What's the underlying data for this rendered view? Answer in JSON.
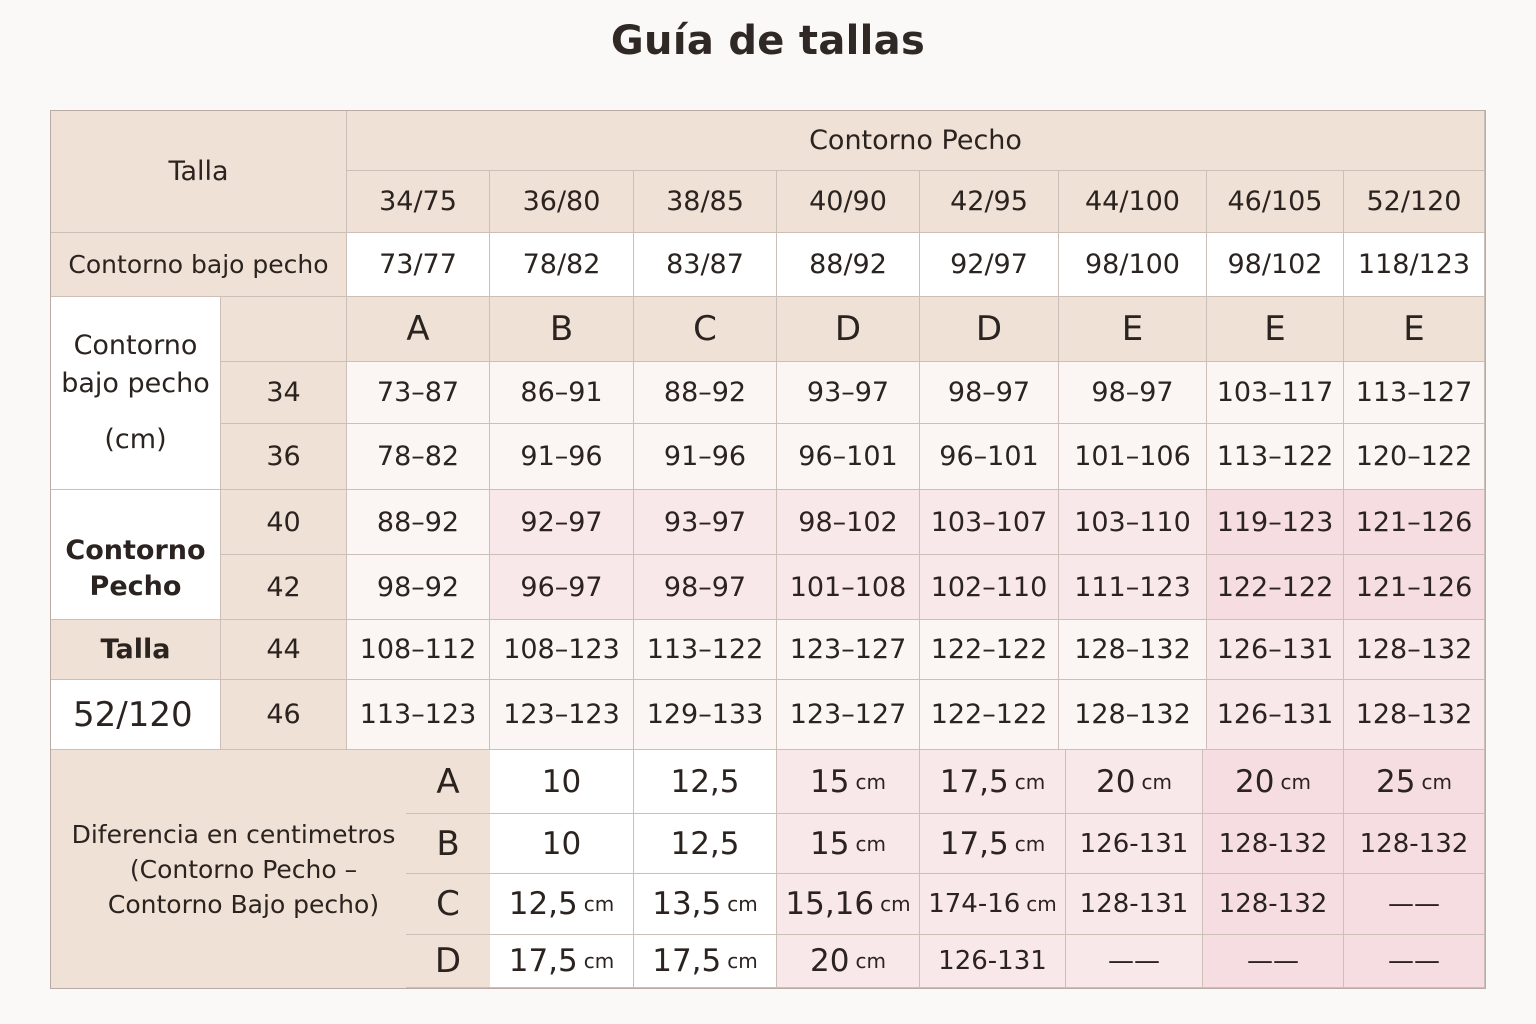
{
  "title": "Guía de tallas",
  "header": {
    "talla": "Talla",
    "contorno_pecho": "Contorno Pecho",
    "sizes": [
      "34/75",
      "36/80",
      "38/85",
      "40/90",
      "42/95",
      "44/100",
      "46/105",
      "52/120"
    ]
  },
  "bajo_pecho_row": {
    "label": "Contorno bajo pecho",
    "values": [
      "73/77",
      "78/82",
      "83/87",
      "88/92",
      "92/97",
      "98/100",
      "98/102",
      "118/123"
    ]
  },
  "cups": [
    "A",
    "B",
    "C",
    "D",
    "D",
    "E",
    "E",
    "E"
  ],
  "side_labels": {
    "group1_line1": "Contorno",
    "group1_line2": "bajo pecho",
    "group1_line3": "(cm)",
    "group2_line1": "Contorno",
    "group2_line2": "Pecho",
    "talla": "Talla",
    "size_52": "52/120"
  },
  "rows": [
    {
      "band": "34",
      "values": [
        "73–87",
        "86–91",
        "88–92",
        "93–97",
        "98–97",
        "98–97",
        "103–117",
        "113–127"
      ]
    },
    {
      "band": "36",
      "values": [
        "78–82",
        "91–96",
        "91–96",
        "96–101",
        "96–101",
        "101–106",
        "113–122",
        "120–122"
      ]
    },
    {
      "band": "40",
      "values": [
        "88–92",
        "92–97",
        "93–97",
        "98–102",
        "103–107",
        "103–110",
        "119–123",
        "121–126"
      ]
    },
    {
      "band": "42",
      "values": [
        "98–92",
        "96–97",
        "98–97",
        "101–108",
        "102–110",
        "111–123",
        "122–122",
        "121–126"
      ]
    },
    {
      "band": "44",
      "values": [
        "108–112",
        "108–123",
        "113–122",
        "123–127",
        "122–122",
        "128–132",
        "126–131",
        "128–132"
      ]
    },
    {
      "band": "46",
      "values": [
        "113–123",
        "123–123",
        "129–133",
        "123–127",
        "122–122",
        "128–132",
        "126–131",
        "128–132"
      ]
    }
  ],
  "diferencia": {
    "label_line1": "Diferencia en centimetros",
    "label_line2": "(Contorno Pecho –",
    "label_line3": "Contorno Bajo pecho)",
    "rows": [
      {
        "letter": "A",
        "cells": [
          {
            "v": "10",
            "u": ""
          },
          {
            "v": "12,5",
            "u": ""
          },
          {
            "v": "15",
            "u": "cm"
          },
          {
            "v": "17,5",
            "u": "cm"
          },
          {
            "v": "20",
            "u": "cm"
          },
          {
            "v": "20",
            "u": "cm"
          },
          {
            "v": "25",
            "u": "cm"
          }
        ]
      },
      {
        "letter": "B",
        "cells": [
          {
            "v": "10",
            "u": ""
          },
          {
            "v": "12,5",
            "u": ""
          },
          {
            "v": "15",
            "u": "cm"
          },
          {
            "v": "17,5",
            "u": "cm"
          },
          {
            "v": "126-131",
            "u": ""
          },
          {
            "v": "128-132",
            "u": ""
          },
          {
            "v": "128-132",
            "u": ""
          }
        ]
      },
      {
        "letter": "C",
        "cells": [
          {
            "v": "12,5",
            "u": "cm"
          },
          {
            "v": "13,5",
            "u": "cm"
          },
          {
            "v": "15,16",
            "u": "cm"
          },
          {
            "v": "174-16",
            "u": "cm"
          },
          {
            "v": "128-131",
            "u": ""
          },
          {
            "v": "128-132",
            "u": ""
          },
          {
            "v": "——",
            "u": ""
          }
        ]
      },
      {
        "letter": "D",
        "cells": [
          {
            "v": "17,5",
            "u": "cm"
          },
          {
            "v": "17,5",
            "u": "cm"
          },
          {
            "v": "20",
            "u": "cm"
          },
          {
            "v": "126-131",
            "u": ""
          },
          {
            "v": "——",
            "u": ""
          },
          {
            "v": "——",
            "u": ""
          },
          {
            "v": "——",
            "u": ""
          }
        ]
      }
    ]
  }
}
